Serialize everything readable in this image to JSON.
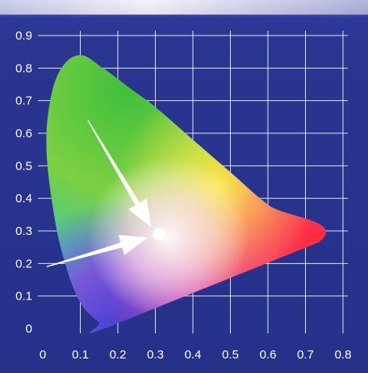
{
  "chart_data": {
    "type": "scatter",
    "title": "",
    "xlabel": "",
    "ylabel": "",
    "xlim": [
      0,
      0.8
    ],
    "ylim": [
      0,
      0.9
    ],
    "x_ticks": [
      "0",
      "0.1",
      "0.2",
      "0.3",
      "0.4",
      "0.5",
      "0.6",
      "0.7",
      "0.8"
    ],
    "y_ticks": [
      "0",
      "0.1",
      "0.2",
      "0.3",
      "0.4",
      "0.5",
      "0.6",
      "0.7",
      "0.8",
      "0.9"
    ],
    "grid": true,
    "gamut_boundary": [
      [
        0.175,
        0.005
      ],
      [
        0.15,
        0.02
      ],
      [
        0.1,
        0.08
      ],
      [
        0.06,
        0.2
      ],
      [
        0.03,
        0.35
      ],
      [
        0.01,
        0.55
      ],
      [
        0.02,
        0.7
      ],
      [
        0.05,
        0.8
      ],
      [
        0.1,
        0.84
      ],
      [
        0.16,
        0.8
      ],
      [
        0.23,
        0.74
      ],
      [
        0.3,
        0.68
      ],
      [
        0.4,
        0.58
      ],
      [
        0.5,
        0.48
      ],
      [
        0.6,
        0.38
      ],
      [
        0.735,
        0.265
      ]
    ],
    "white_point": {
      "x": 0.31,
      "y": 0.29
    },
    "arrows": [
      {
        "from": [
          0.12,
          0.64
        ],
        "to": [
          0.29,
          0.31
        ]
      },
      {
        "from": [
          0.01,
          0.19
        ],
        "to": [
          0.28,
          0.28
        ]
      }
    ],
    "colors": {
      "background": "#2a3590",
      "grid": "#ffffff",
      "marks": "#ffffff"
    }
  }
}
